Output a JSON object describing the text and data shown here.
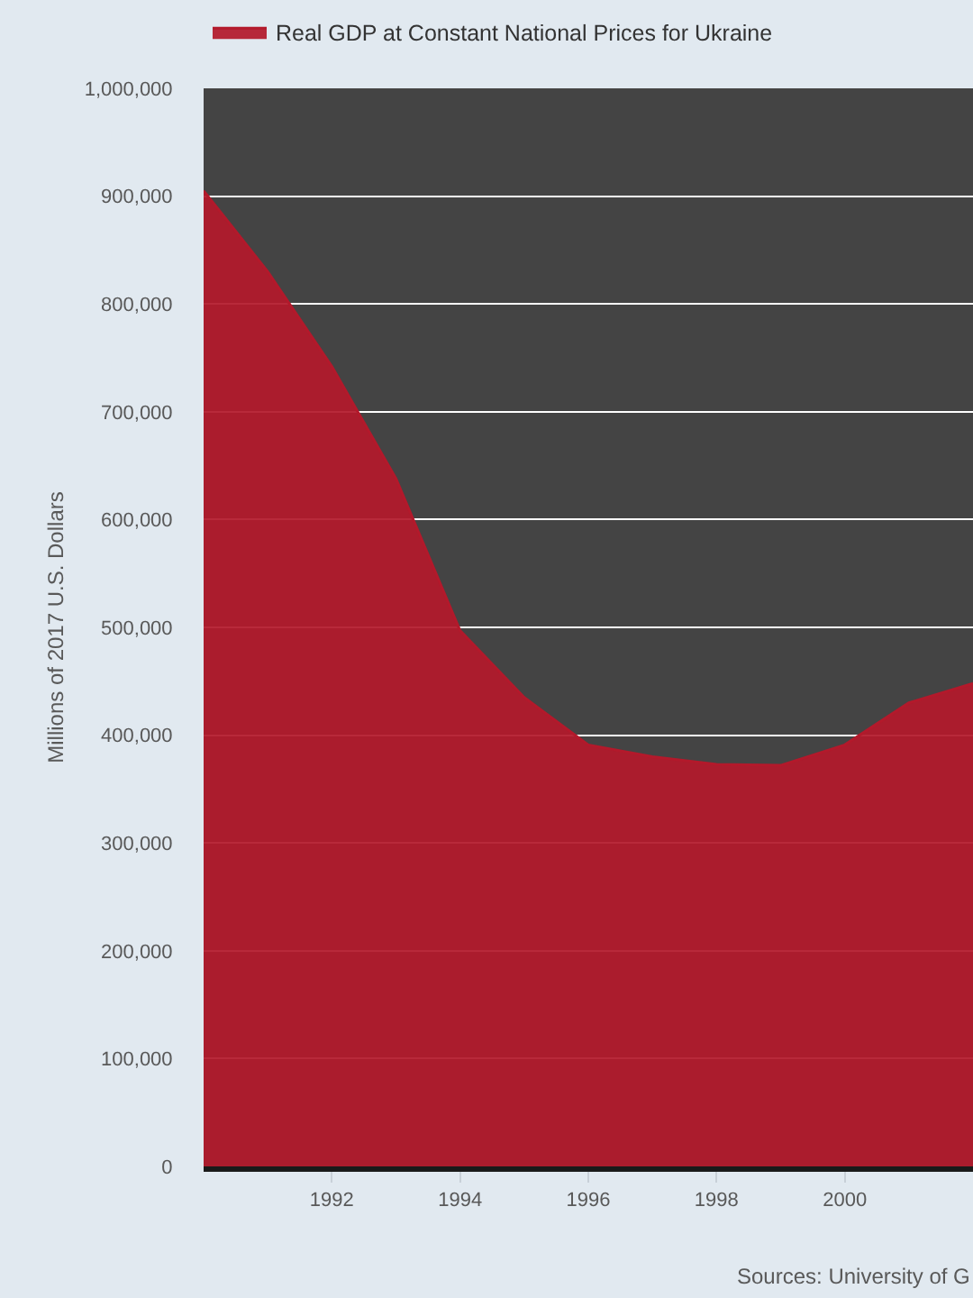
{
  "chart_data": {
    "type": "area",
    "ylabel": "Millions of 2017 U.S. Dollars",
    "x": [
      1990,
      1991,
      1992,
      1993,
      1994,
      1995,
      1996,
      1997,
      1998,
      1999,
      2000,
      2001,
      2002
    ],
    "series": [
      {
        "name": "Real GDP at Constant National Prices for Ukraine",
        "color": "#b3192b",
        "values": [
          905000,
          830000,
          742000,
          638000,
          497000,
          435000,
          391000,
          380000,
          373000,
          372000,
          391000,
          430000,
          448000
        ]
      }
    ],
    "xlim": [
      1990,
      2002
    ],
    "xticks": [
      1992,
      1994,
      1996,
      1998,
      2000
    ],
    "ylim": [
      0,
      1000000
    ],
    "yticks": [
      {
        "value": 0,
        "label": "0"
      },
      {
        "value": 100000,
        "label": "100,000"
      },
      {
        "value": 200000,
        "label": "200,000"
      },
      {
        "value": 300000,
        "label": "300,000"
      },
      {
        "value": 400000,
        "label": "400,000"
      },
      {
        "value": 500000,
        "label": "500,000"
      },
      {
        "value": 600000,
        "label": "600,000"
      },
      {
        "value": 700000,
        "label": "700,000"
      },
      {
        "value": 800000,
        "label": "800,000"
      },
      {
        "value": 900000,
        "label": "900,000"
      },
      {
        "value": 1000000,
        "label": "1,000,000"
      }
    ],
    "grid": "y",
    "legend": "top",
    "annotations": [
      "Sources: University of G"
    ]
  }
}
